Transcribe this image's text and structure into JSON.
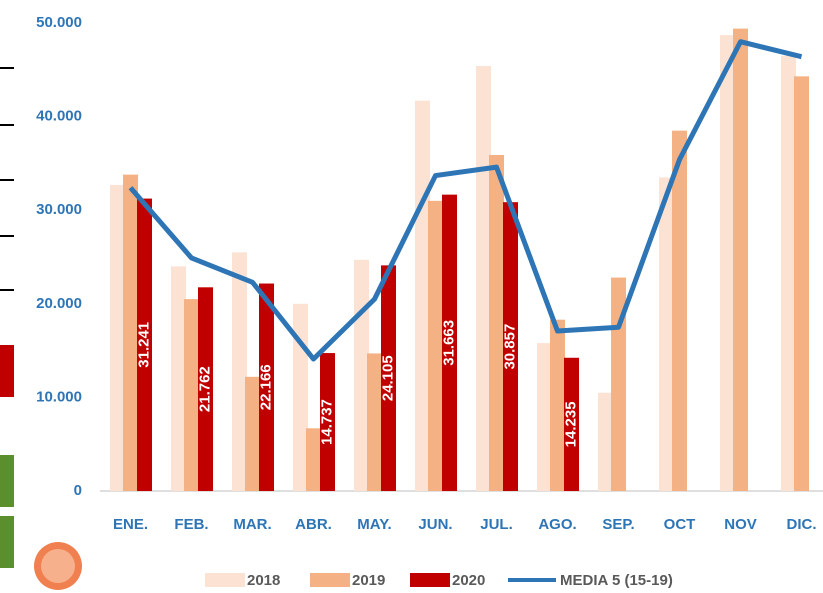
{
  "chart_data": {
    "type": "bar",
    "categories": [
      "ENE.",
      "FEB.",
      "MAR.",
      "ABR.",
      "MAY.",
      "JUN.",
      "JUL.",
      "AGO.",
      "SEP.",
      "OCT",
      "NOV",
      "DIC."
    ],
    "series": [
      {
        "name": "2018",
        "color": "#fbe2d3",
        "values": [
          32700,
          24000,
          25500,
          20000,
          24700,
          41700,
          45400,
          15800,
          10500,
          33500,
          48700,
          46500
        ]
      },
      {
        "name": "2019",
        "color": "#f4b183",
        "values": [
          33800,
          20500,
          12200,
          6700,
          14700,
          31000,
          35900,
          18300,
          22800,
          38500,
          49400,
          44300
        ]
      },
      {
        "name": "2020",
        "color": "#c00000",
        "values": [
          31241,
          21762,
          22166,
          14737,
          24105,
          31663,
          30857,
          14235,
          null,
          null,
          null,
          null
        ],
        "value_labels": [
          "31.241",
          "21.762",
          "22.166",
          "14.737",
          "24.105",
          "31.663",
          "30.857",
          "14.235",
          null,
          null,
          null,
          null
        ]
      },
      {
        "name": "MEDIA 5 (15-19)",
        "type": "line",
        "color": "#2e75b6",
        "values": [
          32400,
          24900,
          22300,
          14100,
          20500,
          33700,
          34600,
          17100,
          17500,
          35400,
          48000,
          46400
        ]
      }
    ],
    "ylim": [
      0,
      50000
    ],
    "yticks": [
      0,
      {
        "value": 10000,
        "label": "10.000"
      },
      {
        "value": 20000,
        "label": "20.000"
      },
      {
        "value": 30000,
        "label": "30.000"
      },
      {
        "value": 40000,
        "label": "40.000"
      },
      {
        "value": 50000,
        "label": "50.000"
      }
    ],
    "grid": false,
    "legend": "bottom"
  }
}
